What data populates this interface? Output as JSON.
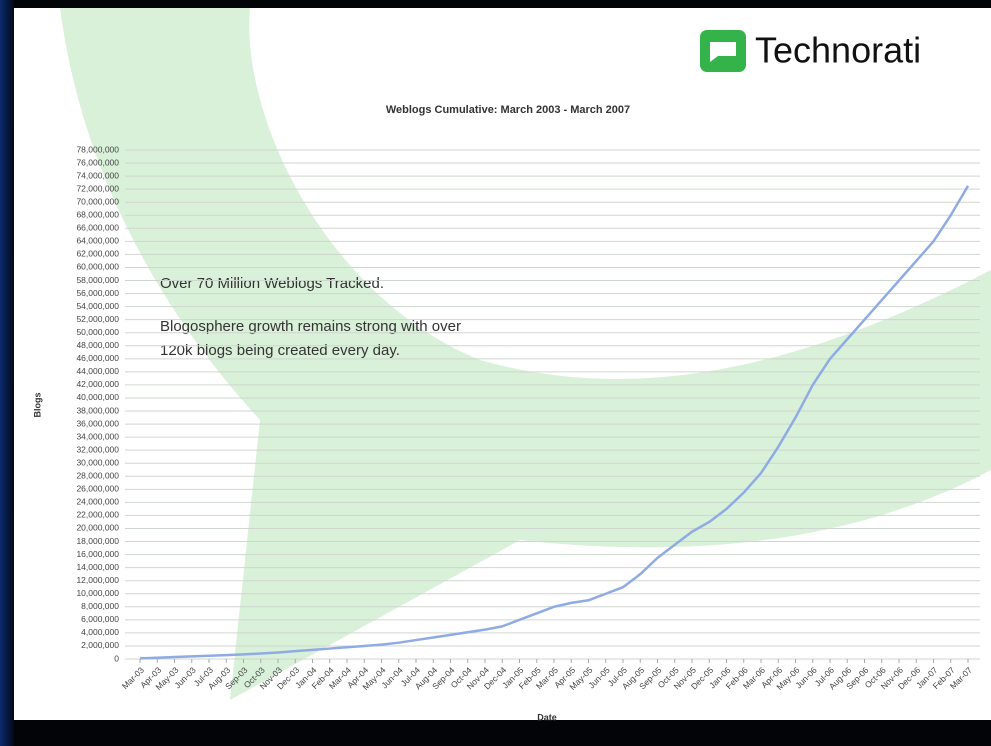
{
  "logo": "Technorati",
  "chart_data": {
    "type": "line",
    "title": "Weblogs Cumulative: March 2003 - March 2007",
    "y_label": "Blogs",
    "x_label": "Date",
    "annotations": [
      "Over 70 Million Weblogs Tracked.",
      "Blogosphere growth remains strong with over",
      "120k blogs being created every day."
    ],
    "categories": [
      "Mar-03",
      "Apr-03",
      "May-03",
      "Jun-03",
      "Jul-03",
      "Aug-03",
      "Sep-03",
      "Oct-03",
      "Nov-03",
      "Dec-03",
      "Jan-04",
      "Feb-04",
      "Mar-04",
      "Apr-04",
      "May-04",
      "Jun-04",
      "Jul-04",
      "Aug-04",
      "Sep-04",
      "Oct-04",
      "Nov-04",
      "Dec-04",
      "Jan-05",
      "Feb-05",
      "Mar-05",
      "Apr-05",
      "May-05",
      "Jun-05",
      "Jul-05",
      "Aug-05",
      "Sep-05",
      "Oct-05",
      "Nov-05",
      "Dec-05",
      "Jan-06",
      "Feb-06",
      "Mar-06",
      "Apr-06",
      "May-06",
      "Jun-06",
      "Jul-06",
      "Aug-06",
      "Sep-06",
      "Oct-06",
      "Nov-06",
      "Dec-06",
      "Jan-07",
      "Feb-07",
      "Mar-07"
    ],
    "series": [
      {
        "name": "Blogs",
        "color": "#8fabe3",
        "values": [
          100000,
          200000,
          300000,
          400000,
          500000,
          600000,
          700000,
          850000,
          1000000,
          1200000,
          1400000,
          1600000,
          1800000,
          2000000,
          2200000,
          2500000,
          2900000,
          3300000,
          3700000,
          4100000,
          4500000,
          5000000,
          6000000,
          7000000,
          8000000,
          8600000,
          9000000,
          10000000,
          11000000,
          13000000,
          15500000,
          17500000,
          19500000,
          21000000,
          23000000,
          25500000,
          28500000,
          32500000,
          37000000,
          42000000,
          46000000,
          49000000,
          52000000,
          55000000,
          58000000,
          61000000,
          64000000,
          68000000,
          72500000
        ]
      }
    ],
    "ylim": [
      0,
      78000000
    ],
    "yticks": [
      0,
      {
        "value": 2000000,
        "label": "2,000,000"
      },
      {
        "value": 4000000,
        "label": "4,000,000"
      },
      {
        "value": 6000000,
        "label": "6,000,000"
      },
      {
        "value": 8000000,
        "label": "8,000,000"
      },
      {
        "value": 10000000,
        "label": "10,000,000"
      },
      {
        "value": 12000000,
        "label": "12,000,000"
      },
      {
        "value": 14000000,
        "label": "14,000,000"
      },
      {
        "value": 16000000,
        "label": "16,000,000"
      },
      {
        "value": 18000000,
        "label": "18,000,000"
      },
      {
        "value": 20000000,
        "label": "20,000,000"
      },
      {
        "value": 22000000,
        "label": "22,000,000"
      },
      {
        "value": 24000000,
        "label": "24,000,000"
      },
      {
        "value": 26000000,
        "label": "26,000,000"
      },
      {
        "value": 28000000,
        "label": "28,000,000"
      },
      {
        "value": 30000000,
        "label": "30,000,000"
      },
      {
        "value": 32000000,
        "label": "32,000,000"
      },
      {
        "value": 34000000,
        "label": "34,000,000"
      },
      {
        "value": 36000000,
        "label": "36,000,000"
      },
      {
        "value": 38000000,
        "label": "38,000,000"
      },
      {
        "value": 40000000,
        "label": "40,000,000"
      },
      {
        "value": 42000000,
        "label": "42,000,000"
      },
      {
        "value": 44000000,
        "label": "44,000,000"
      },
      {
        "value": 46000000,
        "label": "46,000,000"
      },
      {
        "value": 48000000,
        "label": "48,000,000"
      },
      {
        "value": 50000000,
        "label": "50,000,000"
      },
      {
        "value": 52000000,
        "label": "52,000,000"
      },
      {
        "value": 54000000,
        "label": "54,000,000"
      },
      {
        "value": 56000000,
        "label": "56,000,000"
      },
      {
        "value": 58000000,
        "label": "58,000,000"
      },
      {
        "value": 60000000,
        "label": "60,000,000"
      },
      {
        "value": 62000000,
        "label": "62,000,000"
      },
      {
        "value": 64000000,
        "label": "64,000,000"
      },
      {
        "value": 66000000,
        "label": "66,000,000"
      },
      {
        "value": 68000000,
        "label": "68,000,000"
      },
      {
        "value": 70000000,
        "label": "70,000,000"
      },
      {
        "value": 72000000,
        "label": "72,000,000"
      },
      {
        "value": 74000000,
        "label": "74,000,000"
      },
      {
        "value": 76000000,
        "label": "76,000,000"
      },
      {
        "value": 78000000,
        "label": "78,000,000"
      }
    ],
    "grid": true
  }
}
